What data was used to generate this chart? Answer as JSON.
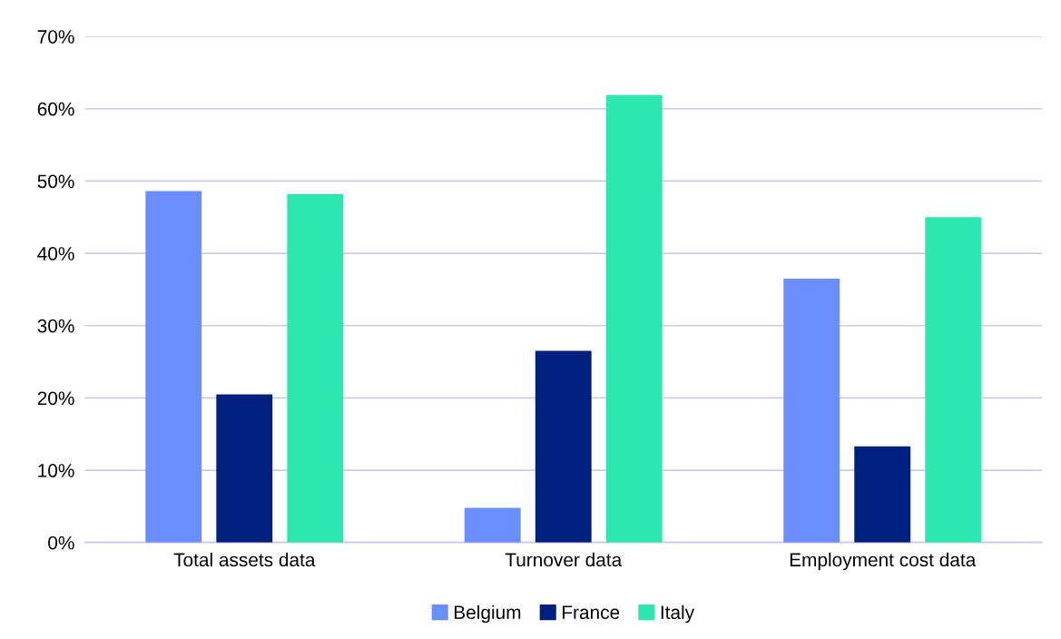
{
  "chart_data": {
    "type": "bar",
    "categories": [
      "Total assets data",
      "Turnover data",
      "Employment cost data"
    ],
    "series": [
      {
        "name": "Belgium",
        "color": "#6b8eff",
        "values": [
          48.6,
          4.8,
          36.5
        ]
      },
      {
        "name": "France",
        "color": "#00207f",
        "values": [
          20.5,
          26.5,
          13.3
        ]
      },
      {
        "name": "Italy",
        "color": "#2ce8b0",
        "values": [
          48.2,
          61.9,
          45.0
        ]
      }
    ],
    "ylim": [
      0,
      70
    ],
    "yticks": [
      {
        "value": 0,
        "label": "0%"
      },
      {
        "value": 10,
        "label": "10%"
      },
      {
        "value": 20,
        "label": "20%"
      },
      {
        "value": 30,
        "label": "30%"
      },
      {
        "value": 40,
        "label": "40%"
      },
      {
        "value": 50,
        "label": "50%"
      },
      {
        "value": 60,
        "label": "60%"
      },
      {
        "value": 70,
        "label": "70%"
      }
    ],
    "grid": "y",
    "legend": "bottom"
  }
}
